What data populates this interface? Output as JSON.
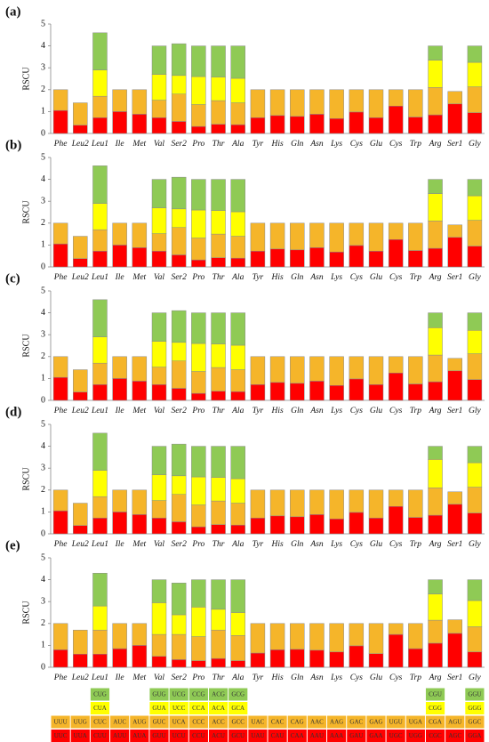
{
  "chart_data": [
    {
      "type": "bar",
      "stacked": true,
      "label": "(a)",
      "y_label": "RSCU",
      "ylim": [
        0,
        5
      ],
      "yticks": [
        0,
        1,
        2,
        3,
        4,
        5
      ],
      "categories": [
        "Phe",
        "Leu2",
        "Leu1",
        "Ile",
        "Met",
        "Val",
        "Ser2",
        "Pro",
        "Thr",
        "Ala",
        "Tyr",
        "His",
        "Gln",
        "Asn",
        "Lys",
        "Cys",
        "Glu",
        "Cys",
        "Trp",
        "Arg",
        "Ser1",
        "Gly"
      ],
      "series": [
        {
          "color": "#ff0000",
          "values": [
            1.05,
            0.38,
            0.72,
            1.0,
            0.88,
            0.72,
            0.55,
            0.32,
            0.42,
            0.4,
            0.72,
            0.82,
            0.78,
            0.88,
            0.68,
            0.98,
            0.72,
            1.25,
            0.75,
            0.85,
            1.35,
            0.95
          ]
        },
        {
          "color": "#f5b52a",
          "values": [
            0.95,
            1.02,
            0.98,
            1.0,
            1.12,
            0.8,
            1.25,
            1.0,
            1.08,
            1.0,
            1.28,
            1.18,
            1.22,
            1.12,
            1.32,
            1.02,
            1.28,
            0.75,
            1.25,
            1.25,
            0.57,
            1.18
          ]
        },
        {
          "color": "#ffff00",
          "values": [
            null,
            null,
            1.2,
            null,
            null,
            1.18,
            0.85,
            1.28,
            1.08,
            1.12,
            null,
            null,
            null,
            null,
            null,
            null,
            null,
            null,
            null,
            1.25,
            null,
            1.12
          ]
        },
        {
          "color": "#8fca55",
          "values": [
            null,
            null,
            1.7,
            null,
            null,
            1.3,
            1.45,
            1.4,
            1.42,
            1.48,
            null,
            null,
            null,
            null,
            null,
            null,
            null,
            null,
            null,
            0.65,
            null,
            0.75
          ]
        }
      ]
    },
    {
      "type": "bar",
      "stacked": true,
      "label": "(b)",
      "y_label": "RSCU",
      "ylim": [
        0,
        5
      ],
      "yticks": [
        0,
        1,
        2,
        3,
        4,
        5
      ],
      "categories": [
        "Phe",
        "Leu2",
        "Leu1",
        "Ile",
        "Met",
        "Val",
        "Ser2",
        "Pro",
        "Thr",
        "Ala",
        "Tyr",
        "His",
        "Gln",
        "Asn",
        "Lys",
        "Cys",
        "Glu",
        "Cys",
        "Trp",
        "Arg",
        "Ser1",
        "Gly"
      ],
      "series": [
        {
          "color": "#ff0000",
          "values": [
            1.05,
            0.38,
            0.72,
            1.0,
            0.88,
            0.72,
            0.55,
            0.32,
            0.42,
            0.4,
            0.72,
            0.82,
            0.78,
            0.88,
            0.68,
            0.98,
            0.72,
            1.25,
            0.75,
            0.85,
            1.35,
            0.95
          ]
        },
        {
          "color": "#f5b52a",
          "values": [
            0.95,
            1.02,
            0.98,
            1.0,
            1.12,
            0.8,
            1.25,
            1.0,
            1.08,
            1.0,
            1.28,
            1.18,
            1.22,
            1.12,
            1.32,
            1.02,
            1.28,
            0.75,
            1.25,
            1.25,
            0.57,
            1.18
          ]
        },
        {
          "color": "#ffff00",
          "values": [
            null,
            null,
            1.2,
            null,
            null,
            1.18,
            0.85,
            1.28,
            1.08,
            1.12,
            null,
            null,
            null,
            null,
            null,
            null,
            null,
            null,
            null,
            1.25,
            null,
            1.12
          ]
        },
        {
          "color": "#8fca55",
          "values": [
            null,
            null,
            1.72,
            null,
            null,
            1.3,
            1.45,
            1.4,
            1.42,
            1.48,
            null,
            null,
            null,
            null,
            null,
            null,
            null,
            null,
            null,
            0.65,
            null,
            0.75
          ]
        }
      ]
    },
    {
      "type": "bar",
      "stacked": true,
      "label": "(c)",
      "y_label": "RSCU",
      "ylim": [
        0,
        5
      ],
      "yticks": [
        0,
        1,
        2,
        3,
        4,
        5
      ],
      "categories": [
        "Phe",
        "Leu2",
        "Leu1",
        "Ile",
        "Met",
        "Val",
        "Ser2",
        "Pro",
        "Thr",
        "Ala",
        "Tyr",
        "His",
        "Gln",
        "Asn",
        "Lys",
        "Cys",
        "Glu",
        "Cys",
        "Trp",
        "Arg",
        "Ser1",
        "Gly"
      ],
      "series": [
        {
          "color": "#ff0000",
          "values": [
            1.05,
            0.38,
            0.72,
            1.0,
            0.88,
            0.72,
            0.55,
            0.32,
            0.42,
            0.4,
            0.72,
            0.82,
            0.78,
            0.88,
            0.68,
            0.98,
            0.72,
            1.25,
            0.75,
            0.85,
            1.35,
            0.95
          ]
        },
        {
          "color": "#f5b52a",
          "values": [
            0.95,
            1.02,
            0.98,
            1.0,
            1.12,
            0.8,
            1.25,
            1.0,
            1.08,
            1.0,
            1.28,
            1.18,
            1.22,
            1.12,
            1.32,
            1.02,
            1.28,
            0.75,
            1.25,
            1.22,
            0.57,
            1.18
          ]
        },
        {
          "color": "#ffff00",
          "values": [
            null,
            null,
            1.2,
            null,
            null,
            1.18,
            0.85,
            1.28,
            1.08,
            1.12,
            null,
            null,
            null,
            null,
            null,
            null,
            null,
            null,
            null,
            1.25,
            null,
            1.07
          ]
        },
        {
          "color": "#8fca55",
          "values": [
            null,
            null,
            1.7,
            null,
            null,
            1.3,
            1.45,
            1.4,
            1.42,
            1.48,
            null,
            null,
            null,
            null,
            null,
            null,
            null,
            null,
            null,
            0.68,
            null,
            0.8
          ]
        }
      ]
    },
    {
      "type": "bar",
      "stacked": true,
      "label": "(d)",
      "y_label": "RSCU",
      "ylim": [
        0,
        5
      ],
      "yticks": [
        0,
        1,
        2,
        3,
        4,
        5
      ],
      "categories": [
        "Phe",
        "Leu2",
        "Leu1",
        "Ile",
        "Met",
        "Val",
        "Ser2",
        "Pro",
        "Thr",
        "Ala",
        "Tyr",
        "His",
        "Gln",
        "Asn",
        "Lys",
        "Cys",
        "Glu",
        "Cys",
        "Trp",
        "Arg",
        "Ser1",
        "Gly"
      ],
      "series": [
        {
          "color": "#ff0000",
          "values": [
            1.05,
            0.38,
            0.72,
            1.0,
            0.88,
            0.72,
            0.55,
            0.32,
            0.42,
            0.4,
            0.72,
            0.82,
            0.78,
            0.88,
            0.68,
            0.98,
            0.72,
            1.25,
            0.75,
            0.85,
            1.35,
            0.95
          ]
        },
        {
          "color": "#f5b52a",
          "values": [
            0.95,
            1.02,
            0.98,
            1.0,
            1.12,
            0.8,
            1.25,
            1.0,
            1.08,
            1.0,
            1.28,
            1.18,
            1.22,
            1.12,
            1.32,
            1.02,
            1.28,
            0.75,
            1.25,
            1.25,
            0.57,
            1.18
          ]
        },
        {
          "color": "#ffff00",
          "values": [
            null,
            null,
            1.2,
            null,
            null,
            1.18,
            0.85,
            1.28,
            1.08,
            1.12,
            null,
            null,
            null,
            null,
            null,
            null,
            null,
            null,
            null,
            1.3,
            null,
            1.12
          ]
        },
        {
          "color": "#8fca55",
          "values": [
            null,
            null,
            1.7,
            null,
            null,
            1.3,
            1.45,
            1.4,
            1.42,
            1.48,
            null,
            null,
            null,
            null,
            null,
            null,
            null,
            null,
            null,
            0.6,
            null,
            0.75
          ]
        }
      ]
    },
    {
      "type": "bar",
      "stacked": true,
      "label": "(e)",
      "y_label": "RSCU",
      "ylim": [
        0,
        5
      ],
      "yticks": [
        0,
        1,
        2,
        3,
        4,
        5
      ],
      "categories": [
        "Phe",
        "Leu2",
        "Leu1",
        "Ile",
        "Met",
        "Val",
        "Ser2",
        "Pro",
        "Thr",
        "Ala",
        "Tyr",
        "His",
        "Gln",
        "Asn",
        "Lys",
        "Cys",
        "Glu",
        "Cys",
        "Trp",
        "Arg",
        "Ser1",
        "Gly"
      ],
      "series": [
        {
          "color": "#ff0000",
          "values": [
            0.8,
            0.6,
            0.6,
            0.85,
            1.0,
            0.5,
            0.35,
            0.3,
            0.4,
            0.3,
            0.65,
            0.8,
            0.82,
            0.78,
            0.7,
            0.98,
            0.62,
            1.5,
            0.85,
            1.1,
            1.55,
            0.7
          ]
        },
        {
          "color": "#f5b52a",
          "values": [
            1.2,
            1.1,
            1.1,
            1.15,
            1.0,
            1.0,
            1.15,
            1.1,
            1.3,
            1.15,
            1.35,
            1.2,
            1.18,
            1.22,
            1.3,
            1.02,
            1.38,
            0.5,
            1.15,
            1.05,
            0.62,
            1.15
          ]
        },
        {
          "color": "#ffff00",
          "values": [
            null,
            null,
            1.1,
            null,
            null,
            1.45,
            0.9,
            1.35,
            0.95,
            1.05,
            null,
            null,
            null,
            null,
            null,
            null,
            null,
            null,
            null,
            1.2,
            null,
            1.2
          ]
        },
        {
          "color": "#8fca55",
          "values": [
            null,
            null,
            1.5,
            null,
            null,
            1.05,
            1.45,
            1.25,
            1.35,
            1.5,
            null,
            null,
            null,
            null,
            null,
            null,
            null,
            null,
            null,
            0.65,
            null,
            0.95
          ]
        }
      ]
    }
  ],
  "codon_table": [
    [
      "UUC",
      "UUU"
    ],
    [
      "UUA",
      "UUG"
    ],
    [
      "CUU",
      "CUC",
      "CUA",
      "CUG"
    ],
    [
      "AUU",
      "AUC"
    ],
    [
      "AUA",
      "AUG"
    ],
    [
      "GUU",
      "GUC",
      "GUA",
      "GUG"
    ],
    [
      "UCU",
      "UCA",
      "UCC",
      "UCG"
    ],
    [
      "CCU",
      "CCC",
      "CCA",
      "CCG"
    ],
    [
      "ACU",
      "ACC",
      "ACA",
      "ACG"
    ],
    [
      "GCU",
      "GCC",
      "GCA",
      "GCG"
    ],
    [
      "UAU",
      "UAC"
    ],
    [
      "CAU",
      "CAC"
    ],
    [
      "CAA",
      "CAG"
    ],
    [
      "AAU",
      "AAC"
    ],
    [
      "AAA",
      "AAG"
    ],
    [
      "GAU",
      "GAC"
    ],
    [
      "GAA",
      "GAG"
    ],
    [
      "UGC",
      "UGU"
    ],
    [
      "UGG",
      "UGA"
    ],
    [
      "CGC",
      "CGA",
      "CGG",
      "CGU"
    ],
    [
      "AGC",
      "AGU"
    ],
    [
      "GGA",
      "GGC",
      "GGG",
      "GGU"
    ]
  ]
}
